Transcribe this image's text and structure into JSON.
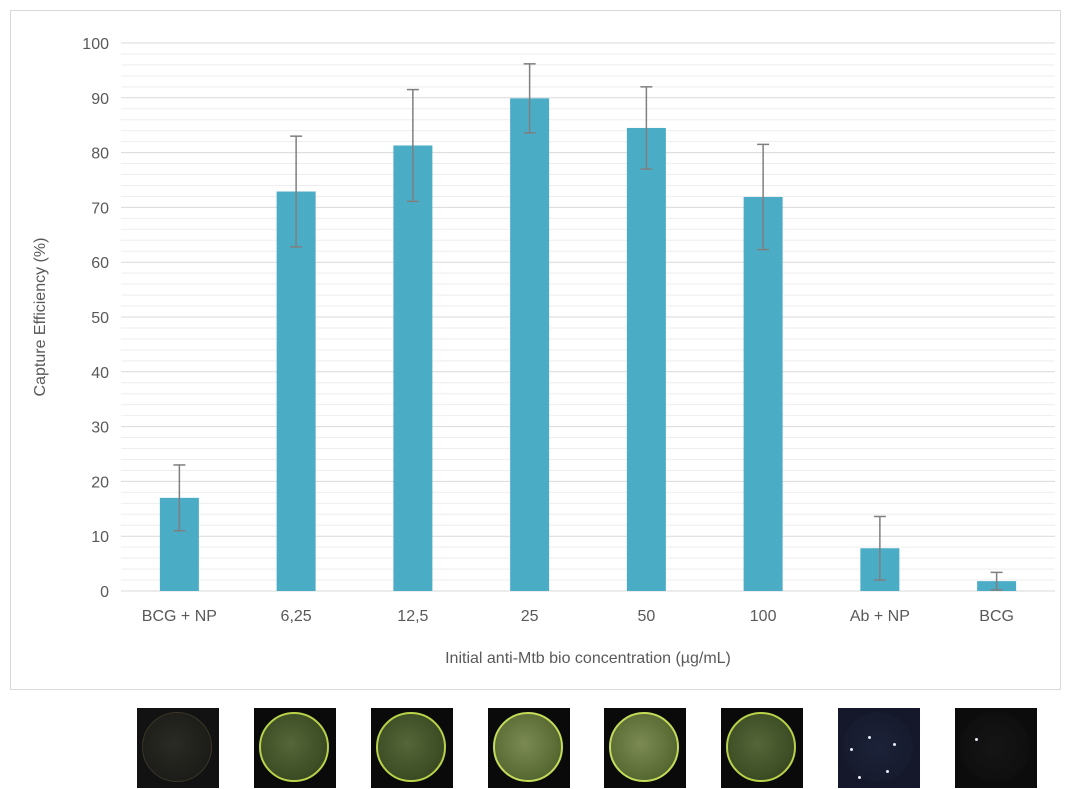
{
  "chart_data": {
    "type": "bar",
    "categories": [
      "BCG + NP",
      "6,25",
      "12,5",
      "25",
      "50",
      "100",
      "Ab + NP",
      "BCG"
    ],
    "values": [
      17,
      72.9,
      81.3,
      89.9,
      84.5,
      71.9,
      7.8,
      1.8
    ],
    "error": [
      6,
      10.1,
      10.2,
      6.3,
      7.5,
      9.6,
      5.8,
      1.6
    ],
    "xlabel": "Initial anti-Mtb bio concentration (µg/mL)",
    "ylabel": "Capture Efficiency (%)",
    "ylim": [
      0,
      100
    ],
    "yticks": [
      0,
      10,
      20,
      30,
      40,
      50,
      60,
      70,
      80,
      90,
      100
    ],
    "minor_grid_step": 2,
    "grid": true,
    "colors": {
      "bar": "#4bacc6",
      "error_bar": "#7f7f7f",
      "major_grid": "#d9d9d9",
      "minor_grid": "#eeeeee",
      "text": "#595959"
    }
  },
  "thumbnails": [
    {
      "category": "BCG + NP",
      "style": "dark-faint-dish"
    },
    {
      "category": "6,25",
      "style": "green-dish"
    },
    {
      "category": "12,5",
      "style": "green-dish"
    },
    {
      "category": "25",
      "style": "bright-green-dish"
    },
    {
      "category": "50",
      "style": "bright-green-dish"
    },
    {
      "category": "100",
      "style": "green-dish"
    },
    {
      "category": "Ab + NP",
      "style": "dark-blue-speckled"
    },
    {
      "category": "BCG",
      "style": "black-dotted"
    }
  ]
}
